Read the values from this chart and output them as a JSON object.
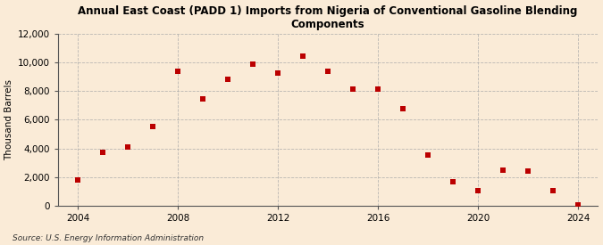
{
  "title": "Annual East Coast (PADD 1) Imports from Nigeria of Conventional Gasoline Blending\nComponents",
  "ylabel": "Thousand Barrels",
  "source": "Source: U.S. Energy Information Administration",
  "background_color": "#faebd7",
  "plot_background_color": "#faebd7",
  "marker_color": "#bb0000",
  "marker_size": 5,
  "xlim": [
    2003.2,
    2024.8
  ],
  "ylim": [
    0,
    12000
  ],
  "yticks": [
    0,
    2000,
    4000,
    6000,
    8000,
    10000,
    12000
  ],
  "ytick_labels": [
    "0",
    "2,000",
    "4,000",
    "6,000",
    "8,000",
    "10,000",
    "12,000"
  ],
  "xticks": [
    2004,
    2008,
    2012,
    2016,
    2020,
    2024
  ],
  "data": {
    "years": [
      2004,
      2005,
      2006,
      2007,
      2008,
      2009,
      2010,
      2011,
      2012,
      2013,
      2014,
      2015,
      2016,
      2017,
      2018,
      2019,
      2020,
      2021,
      2022,
      2023,
      2024
    ],
    "values": [
      1800,
      3700,
      4100,
      5500,
      9350,
      7450,
      8800,
      9850,
      9250,
      10400,
      9350,
      8150,
      8100,
      6750,
      3550,
      1700,
      1050,
      2500,
      2450,
      1050,
      100
    ]
  }
}
